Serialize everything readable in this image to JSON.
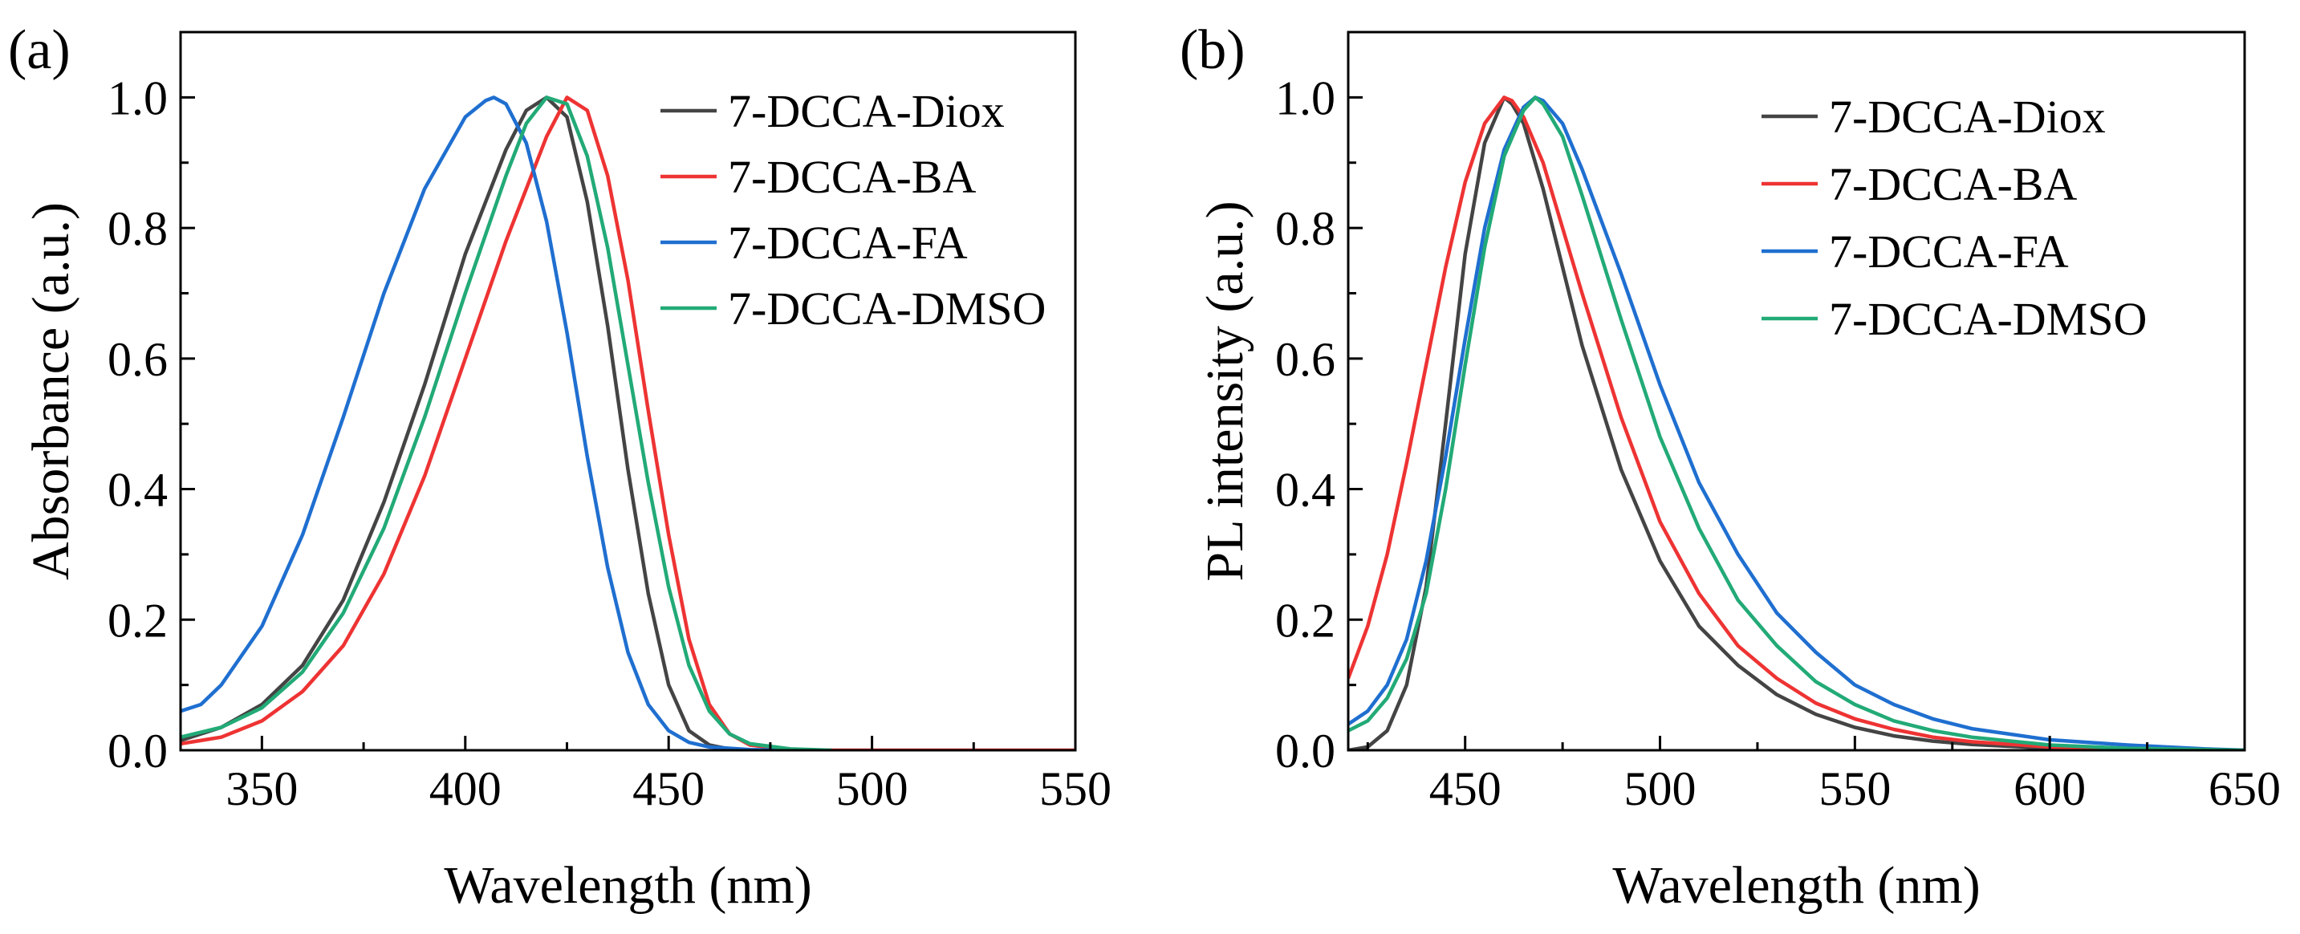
{
  "chart_data": [
    {
      "type": "line",
      "panel_label": "(a)",
      "xlabel": "Wavelength (nm)",
      "ylabel": "Absorbance (a.u.)",
      "xlim": [
        330,
        550
      ],
      "ylim": [
        0,
        1.1
      ],
      "xticks": [
        350,
        400,
        450,
        500,
        550
      ],
      "yticks": [
        0.0,
        0.2,
        0.4,
        0.6,
        0.8,
        1.0
      ],
      "xtick_labels": [
        "350",
        "400",
        "450",
        "500",
        "550"
      ],
      "ytick_labels": [
        "0.0",
        "0.2",
        "0.4",
        "0.6",
        "0.8",
        "1.0"
      ],
      "legend_position": "top-right",
      "series": [
        {
          "name": "7-DCCA-Diox",
          "color": "#444444",
          "x": [
            330,
            340,
            350,
            360,
            370,
            380,
            390,
            400,
            410,
            415,
            420,
            425,
            430,
            435,
            440,
            445,
            450,
            455,
            460,
            465,
            470
          ],
          "y": [
            0.015,
            0.035,
            0.07,
            0.13,
            0.23,
            0.38,
            0.56,
            0.76,
            0.92,
            0.98,
            1.0,
            0.97,
            0.84,
            0.65,
            0.43,
            0.24,
            0.1,
            0.03,
            0.008,
            0.002,
            0.0
          ]
        },
        {
          "name": "7-DCCA-BA",
          "color": "#EE3333",
          "x": [
            330,
            340,
            350,
            360,
            370,
            380,
            390,
            400,
            410,
            420,
            425,
            430,
            435,
            440,
            445,
            450,
            455,
            460,
            465,
            470,
            480,
            490,
            500,
            550
          ],
          "y": [
            0.01,
            0.02,
            0.045,
            0.09,
            0.16,
            0.27,
            0.42,
            0.6,
            0.78,
            0.94,
            1.0,
            0.98,
            0.88,
            0.72,
            0.52,
            0.33,
            0.17,
            0.07,
            0.025,
            0.008,
            0.001,
            0.0,
            0.0,
            0.0
          ]
        },
        {
          "name": "7-DCCA-FA",
          "color": "#1F6FD0",
          "x": [
            330,
            335,
            340,
            350,
            360,
            370,
            380,
            390,
            400,
            405,
            407,
            410,
            415,
            420,
            425,
            430,
            435,
            440,
            445,
            450,
            455,
            460,
            470,
            480
          ],
          "y": [
            0.06,
            0.07,
            0.1,
            0.19,
            0.33,
            0.51,
            0.7,
            0.86,
            0.97,
            0.995,
            1.0,
            0.99,
            0.93,
            0.81,
            0.64,
            0.45,
            0.28,
            0.15,
            0.07,
            0.03,
            0.012,
            0.005,
            0.001,
            0.0
          ]
        },
        {
          "name": "7-DCCA-DMSO",
          "color": "#22AA77",
          "x": [
            330,
            340,
            350,
            360,
            370,
            380,
            390,
            400,
            410,
            415,
            420,
            425,
            430,
            435,
            440,
            445,
            450,
            455,
            460,
            465,
            470,
            480,
            490
          ],
          "y": [
            0.02,
            0.035,
            0.065,
            0.12,
            0.21,
            0.34,
            0.51,
            0.7,
            0.88,
            0.96,
            1.0,
            0.99,
            0.91,
            0.77,
            0.59,
            0.41,
            0.25,
            0.13,
            0.06,
            0.025,
            0.01,
            0.002,
            0.0
          ]
        }
      ]
    },
    {
      "type": "line",
      "panel_label": "(b)",
      "xlabel": "Wavelength (nm)",
      "ylabel": "PL intensity (a.u.)",
      "xlim": [
        420,
        650
      ],
      "ylim": [
        0,
        1.1
      ],
      "xticks": [
        450,
        500,
        550,
        600,
        650
      ],
      "yticks": [
        0.0,
        0.2,
        0.4,
        0.6,
        0.8,
        1.0
      ],
      "xtick_labels": [
        "450",
        "500",
        "550",
        "600",
        "650"
      ],
      "ytick_labels": [
        "0.0",
        "0.2",
        "0.4",
        "0.6",
        "0.8",
        "1.0"
      ],
      "legend_position": "top-right",
      "series": [
        {
          "name": "7-DCCA-Diox",
          "color": "#444444",
          "x": [
            420,
            425,
            430,
            435,
            440,
            445,
            450,
            455,
            460,
            462,
            465,
            470,
            475,
            480,
            490,
            500,
            510,
            520,
            530,
            540,
            550,
            560,
            570,
            580,
            600,
            620,
            650
          ],
          "y": [
            0.0,
            0.005,
            0.03,
            0.1,
            0.25,
            0.5,
            0.76,
            0.93,
            1.0,
            0.99,
            0.96,
            0.86,
            0.74,
            0.62,
            0.43,
            0.29,
            0.19,
            0.13,
            0.085,
            0.055,
            0.035,
            0.022,
            0.014,
            0.009,
            0.003,
            0.001,
            0.0
          ]
        },
        {
          "name": "7-DCCA-BA",
          "color": "#EE3333",
          "x": [
            420,
            425,
            430,
            435,
            440,
            445,
            450,
            455,
            460,
            462,
            465,
            470,
            475,
            480,
            490,
            500,
            510,
            520,
            530,
            540,
            550,
            560,
            570,
            580,
            600,
            620,
            650
          ],
          "y": [
            0.11,
            0.19,
            0.3,
            0.44,
            0.59,
            0.74,
            0.87,
            0.96,
            1.0,
            0.995,
            0.97,
            0.9,
            0.8,
            0.7,
            0.51,
            0.35,
            0.24,
            0.16,
            0.11,
            0.072,
            0.048,
            0.032,
            0.02,
            0.013,
            0.005,
            0.002,
            0.0
          ]
        },
        {
          "name": "7-DCCA-FA",
          "color": "#1F6FD0",
          "x": [
            420,
            425,
            430,
            435,
            440,
            445,
            450,
            455,
            460,
            465,
            468,
            470,
            475,
            480,
            490,
            500,
            510,
            520,
            530,
            540,
            550,
            560,
            570,
            580,
            600,
            620,
            640,
            650
          ],
          "y": [
            0.04,
            0.06,
            0.1,
            0.17,
            0.29,
            0.45,
            0.63,
            0.8,
            0.92,
            0.985,
            1.0,
            0.995,
            0.96,
            0.89,
            0.73,
            0.56,
            0.41,
            0.3,
            0.21,
            0.15,
            0.1,
            0.07,
            0.048,
            0.033,
            0.016,
            0.008,
            0.002,
            0.0
          ]
        },
        {
          "name": "7-DCCA-DMSO",
          "color": "#22AA77",
          "x": [
            420,
            425,
            430,
            435,
            440,
            445,
            450,
            455,
            460,
            465,
            468,
            470,
            475,
            480,
            490,
            500,
            510,
            520,
            530,
            540,
            550,
            560,
            570,
            580,
            600,
            620,
            650
          ],
          "y": [
            0.03,
            0.045,
            0.08,
            0.14,
            0.24,
            0.4,
            0.59,
            0.77,
            0.91,
            0.98,
            1.0,
            0.99,
            0.94,
            0.85,
            0.66,
            0.48,
            0.34,
            0.23,
            0.16,
            0.105,
            0.07,
            0.045,
            0.03,
            0.02,
            0.008,
            0.003,
            0.0
          ]
        }
      ]
    }
  ]
}
